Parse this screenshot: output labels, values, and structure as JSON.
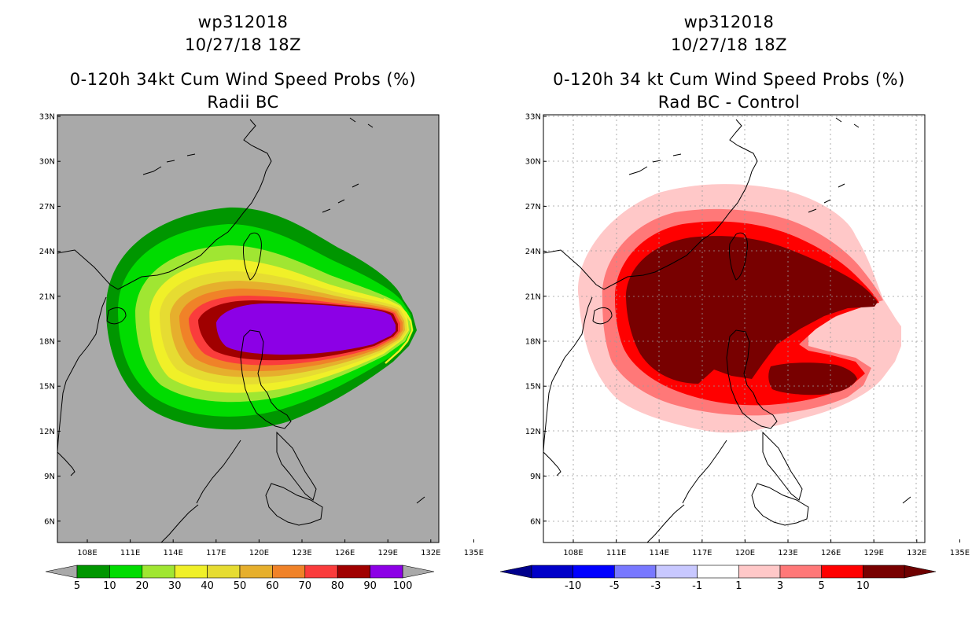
{
  "panels": [
    {
      "id": "radii_bc",
      "title_storm": "wp312018",
      "title_time": "10/27/18 18Z",
      "title_product": "0-120h 34kt Cum Wind Speed Probs (%)",
      "title_subtitle": "Radii BC",
      "background": "#a9a9a9",
      "colorbar": {
        "colors": [
          "#009600",
          "#00dc00",
          "#a0e632",
          "#f0f028",
          "#e6dc32",
          "#e6af2d",
          "#f08228",
          "#fa3c3c",
          "#a00000",
          "#8c00e6"
        ],
        "labels": [
          "5",
          "10",
          "20",
          "30",
          "40",
          "50",
          "60",
          "70",
          "80",
          "90",
          "100"
        ],
        "under_color": "#a9a9a9",
        "over_color": "#a9a9a9"
      }
    },
    {
      "id": "rad_bc_minus_control",
      "title_storm": "wp312018",
      "title_time": "10/27/18 18Z",
      "title_product": "0-120h 34 kt Cum Wind Speed Probs (%)",
      "title_subtitle": "Rad BC - Control",
      "background": "#ffffff",
      "colorbar": {
        "colors": [
          "#0000c8",
          "#0000ff",
          "#7878ff",
          "#c8c8ff",
          "#ffffff",
          "#ffc8c8",
          "#ff7878",
          "#ff0000",
          "#780000"
        ],
        "labels": [
          "-10",
          "-5",
          "-3",
          "-1",
          "1",
          "3",
          "5",
          "10"
        ],
        "under_color": "#00008c",
        "over_color": "#6e0000"
      }
    }
  ],
  "map": {
    "lat_ticks": [
      "33N",
      "30N",
      "27N",
      "24N",
      "21N",
      "18N",
      "15N",
      "12N",
      "9N",
      "6N"
    ],
    "lon_ticks": [
      "108E",
      "111E",
      "114E",
      "117E",
      "120E",
      "123E",
      "126E",
      "129E",
      "132E",
      "135E"
    ]
  }
}
